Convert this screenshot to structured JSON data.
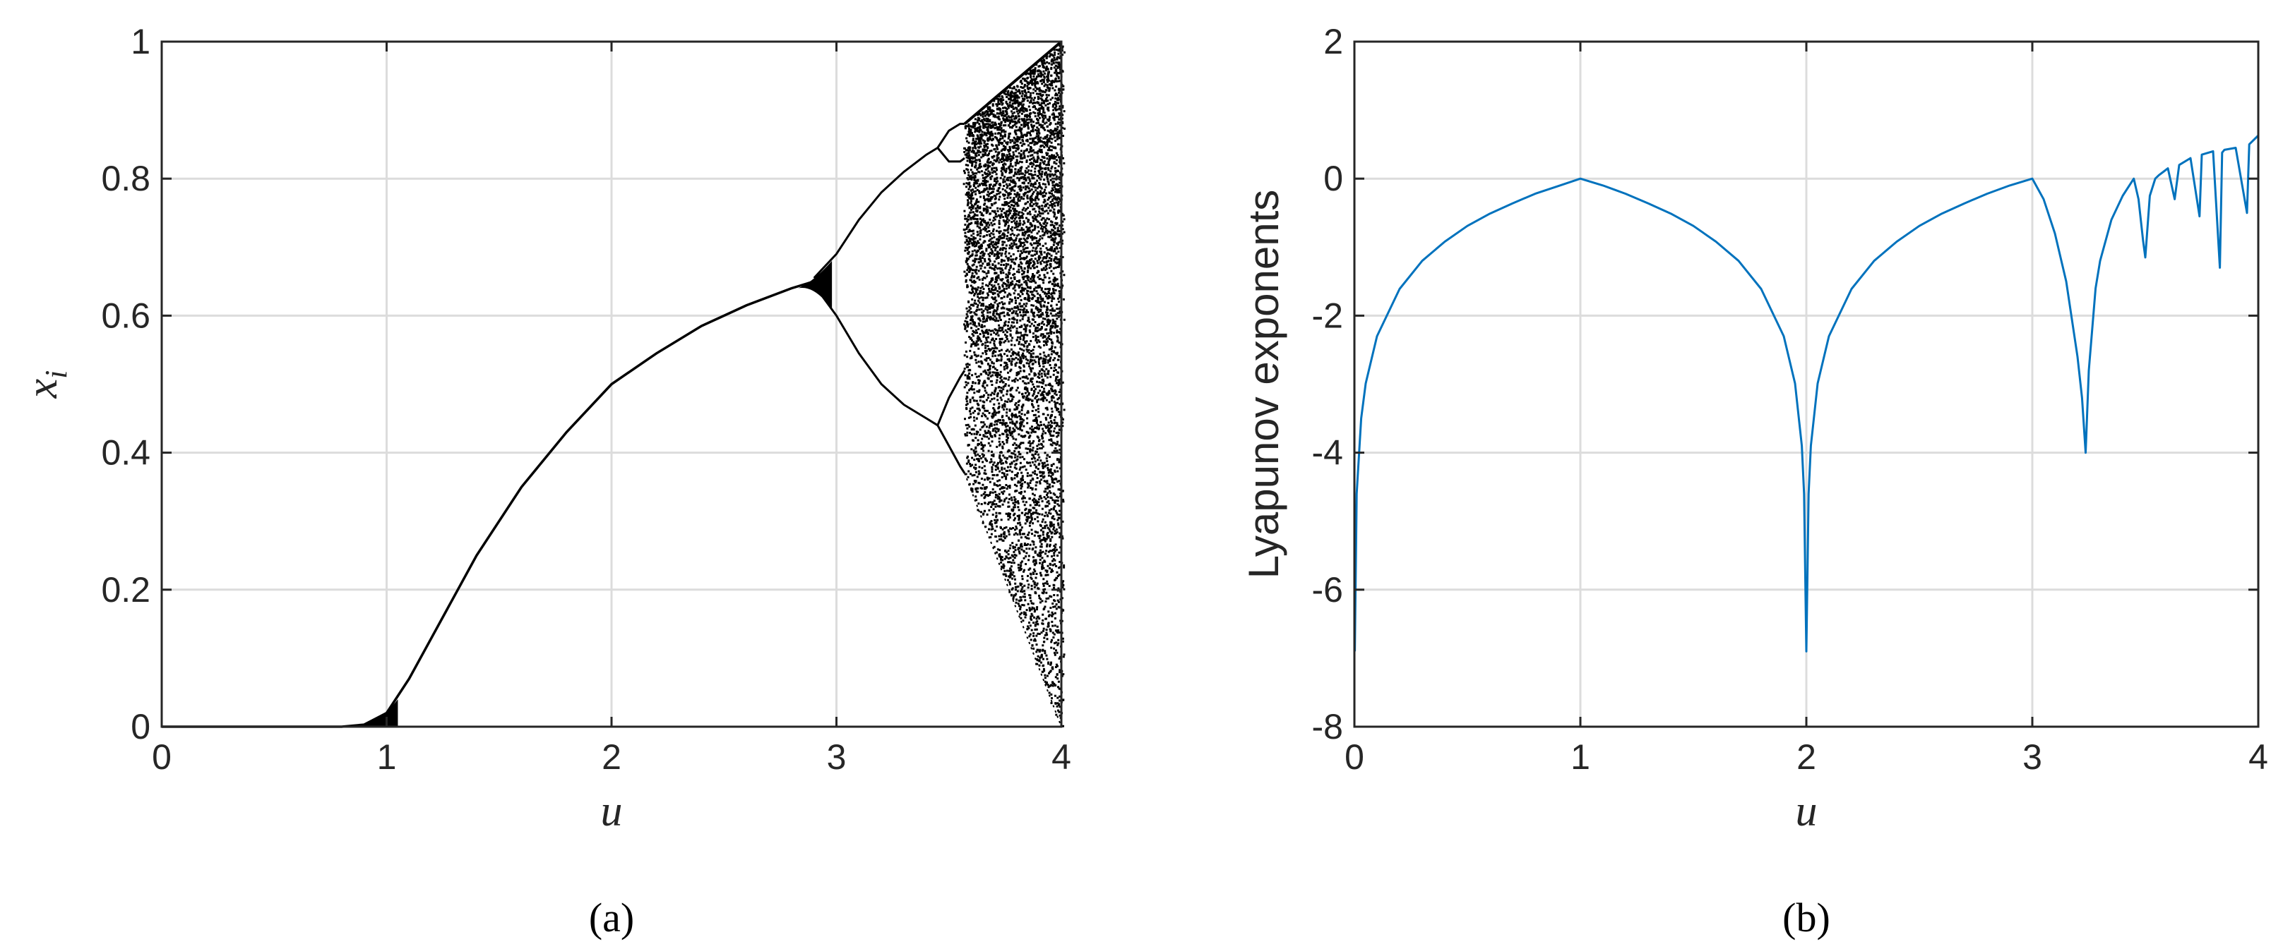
{
  "chart_data": [
    {
      "id": "a",
      "type": "scatter",
      "title": "",
      "caption": "(a)",
      "xlabel": "u",
      "ylabel_main": "x",
      "ylabel_sub": "i",
      "xlim": [
        0,
        4
      ],
      "ylim": [
        0,
        1
      ],
      "xticks": [
        0,
        1,
        2,
        3,
        4
      ],
      "yticks": [
        0,
        0.2,
        0.4,
        0.6,
        0.8,
        1
      ],
      "xtick_labels": [
        "0",
        "1",
        "2",
        "3",
        "4"
      ],
      "ytick_labels": [
        "0",
        "0.2",
        "0.4",
        "0.6",
        "0.8",
        "1"
      ],
      "grid": true,
      "point_color": "#000000",
      "series": [
        {
          "branches": [
            {
              "x": [
                0,
                0.5,
                0.8,
                0.9,
                1.0,
                1.1,
                1.2,
                1.4,
                1.6,
                1.8,
                2.0,
                2.2,
                2.4,
                2.6,
                2.8,
                2.9
              ],
              "y": [
                0,
                0,
                0,
                0.003,
                0.02,
                0.07,
                0.13,
                0.25,
                0.35,
                0.43,
                0.5,
                0.545,
                0.585,
                0.615,
                0.64,
                0.65
              ]
            },
            {
              "x": [
                2.9,
                3.0,
                3.1,
                3.2,
                3.3,
                3.4,
                3.45
              ],
              "y": [
                0.655,
                0.69,
                0.74,
                0.78,
                0.81,
                0.835,
                0.845
              ]
            },
            {
              "x": [
                2.9,
                3.0,
                3.1,
                3.2,
                3.3,
                3.4,
                3.45
              ],
              "y": [
                0.645,
                0.6,
                0.545,
                0.5,
                0.47,
                0.45,
                0.44
              ]
            },
            {
              "x": [
                3.45,
                3.5,
                3.55,
                3.57
              ],
              "y": [
                0.845,
                0.87,
                0.88,
                0.88
              ]
            },
            {
              "x": [
                3.45,
                3.5,
                3.55,
                3.57
              ],
              "y": [
                0.845,
                0.825,
                0.825,
                0.83
              ]
            },
            {
              "x": [
                3.45,
                3.5,
                3.55,
                3.57
              ],
              "y": [
                0.44,
                0.48,
                0.51,
                0.52
              ]
            },
            {
              "x": [
                3.45,
                3.5,
                3.55,
                3.57
              ],
              "y": [
                0.44,
                0.41,
                0.38,
                0.37
              ]
            }
          ],
          "chaotic_region": {
            "x_start": 3.57,
            "x_end": 4.0,
            "upper_edge": [
              [
                3.57,
                0.88
              ],
              [
                4.0,
                1.0
              ]
            ],
            "lower_edge": [
              [
                3.57,
                0.37
              ],
              [
                4.0,
                0.0
              ]
            ]
          }
        }
      ]
    },
    {
      "id": "b",
      "type": "line",
      "title": "",
      "caption": "(b)",
      "xlabel": "u",
      "ylabel": "Lyapunov exponents",
      "xlim": [
        0,
        4
      ],
      "ylim": [
        -8,
        2
      ],
      "xticks": [
        0,
        1,
        2,
        3,
        4
      ],
      "yticks": [
        -8,
        -6,
        -4,
        -2,
        0,
        2
      ],
      "xtick_labels": [
        "0",
        "1",
        "2",
        "3",
        "4"
      ],
      "ytick_labels": [
        "-8",
        "-6",
        "-4",
        "-2",
        "0",
        "2"
      ],
      "grid": true,
      "line_color": "#0072BD",
      "series": [
        {
          "x": [
            0.002,
            0.01,
            0.03,
            0.05,
            0.1,
            0.2,
            0.3,
            0.4,
            0.5,
            0.6,
            0.7,
            0.8,
            0.9,
            1.0,
            1.1,
            1.2,
            1.3,
            1.4,
            1.5,
            1.6,
            1.7,
            1.8,
            1.9,
            1.95,
            1.98,
            1.99,
            2.0,
            2.01,
            2.02,
            2.05,
            2.1,
            2.2,
            2.3,
            2.4,
            2.5,
            2.6,
            2.7,
            2.8,
            2.9,
            3.0,
            3.05,
            3.1,
            3.15,
            3.2,
            3.22,
            3.236,
            3.25,
            3.28,
            3.3,
            3.35,
            3.4,
            3.449,
            3.47,
            3.49,
            3.5,
            3.52,
            3.544,
            3.56,
            3.58,
            3.6,
            3.63,
            3.65,
            3.7,
            3.74,
            3.75,
            3.8,
            3.83,
            3.84,
            3.85,
            3.9,
            3.95,
            3.96,
            4.0
          ],
          "y": [
            -6.9,
            -4.6,
            -3.5,
            -2.99,
            -2.3,
            -1.61,
            -1.2,
            -0.92,
            -0.69,
            -0.51,
            -0.36,
            -0.22,
            -0.11,
            0,
            -0.1,
            -0.22,
            -0.36,
            -0.51,
            -0.69,
            -0.92,
            -1.2,
            -1.61,
            -2.3,
            -2.99,
            -3.9,
            -4.6,
            -6.9,
            -4.6,
            -3.9,
            -2.99,
            -2.3,
            -1.61,
            -1.2,
            -0.92,
            -0.69,
            -0.51,
            -0.36,
            -0.22,
            -0.1,
            0,
            -0.3,
            -0.8,
            -1.5,
            -2.6,
            -3.2,
            -4.0,
            -2.8,
            -1.6,
            -1.2,
            -0.6,
            -0.25,
            0,
            -0.3,
            -0.9,
            -1.15,
            -0.25,
            0,
            0.05,
            0.1,
            0.15,
            -0.3,
            0.2,
            0.3,
            -0.55,
            0.35,
            0.4,
            -1.3,
            0.38,
            0.42,
            0.45,
            -0.5,
            0.5,
            0.63
          ]
        }
      ]
    }
  ]
}
